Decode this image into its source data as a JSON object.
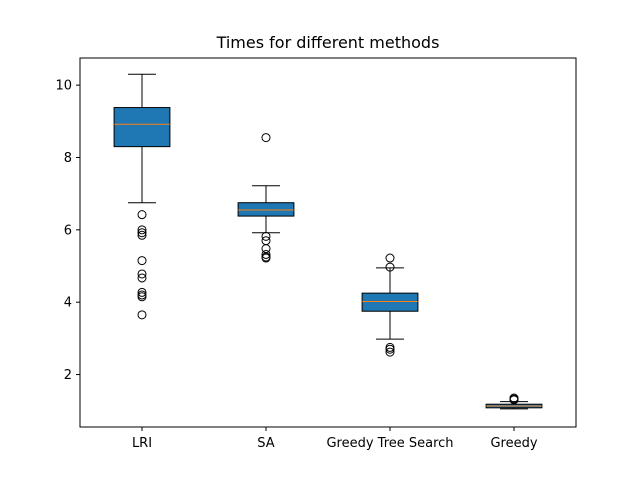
{
  "chart_data": {
    "type": "boxplot",
    "title": "Times for different methods",
    "xlabel": "",
    "ylabel": "",
    "ylim": [
      0.55,
      10.75
    ],
    "yticks": [
      2,
      4,
      6,
      8,
      10
    ],
    "grid": false,
    "legend": "none",
    "colors": {
      "box_fill": "#1f77b4",
      "median": "#ff7f0e",
      "edge": "#000000"
    },
    "categories": [
      "LRI",
      "SA",
      "Greedy Tree Search",
      "Greedy"
    ],
    "boxes": [
      {
        "label": "LRI",
        "whisker_low": 6.75,
        "q1": 8.3,
        "median": 8.92,
        "q3": 9.38,
        "whisker_high": 10.3,
        "outliers": [
          6.42,
          6.0,
          5.92,
          5.85,
          5.15,
          4.78,
          4.67,
          4.27,
          4.2,
          4.15,
          3.65
        ]
      },
      {
        "label": "SA",
        "whisker_low": 5.92,
        "q1": 6.38,
        "median": 6.55,
        "q3": 6.75,
        "whisker_high": 7.22,
        "outliers": [
          8.55,
          5.82,
          5.7,
          5.48,
          5.32,
          5.25,
          5.22
        ]
      },
      {
        "label": "Greedy Tree Search",
        "whisker_low": 2.98,
        "q1": 3.75,
        "median": 4.02,
        "q3": 4.25,
        "whisker_high": 4.95,
        "outliers": [
          5.22,
          4.97,
          2.75,
          2.7,
          2.62
        ]
      },
      {
        "label": "Greedy",
        "whisker_low": 1.05,
        "q1": 1.08,
        "median": 1.13,
        "q3": 1.18,
        "whisker_high": 1.25,
        "outliers": [
          1.35,
          1.32,
          1.3
        ]
      }
    ]
  }
}
